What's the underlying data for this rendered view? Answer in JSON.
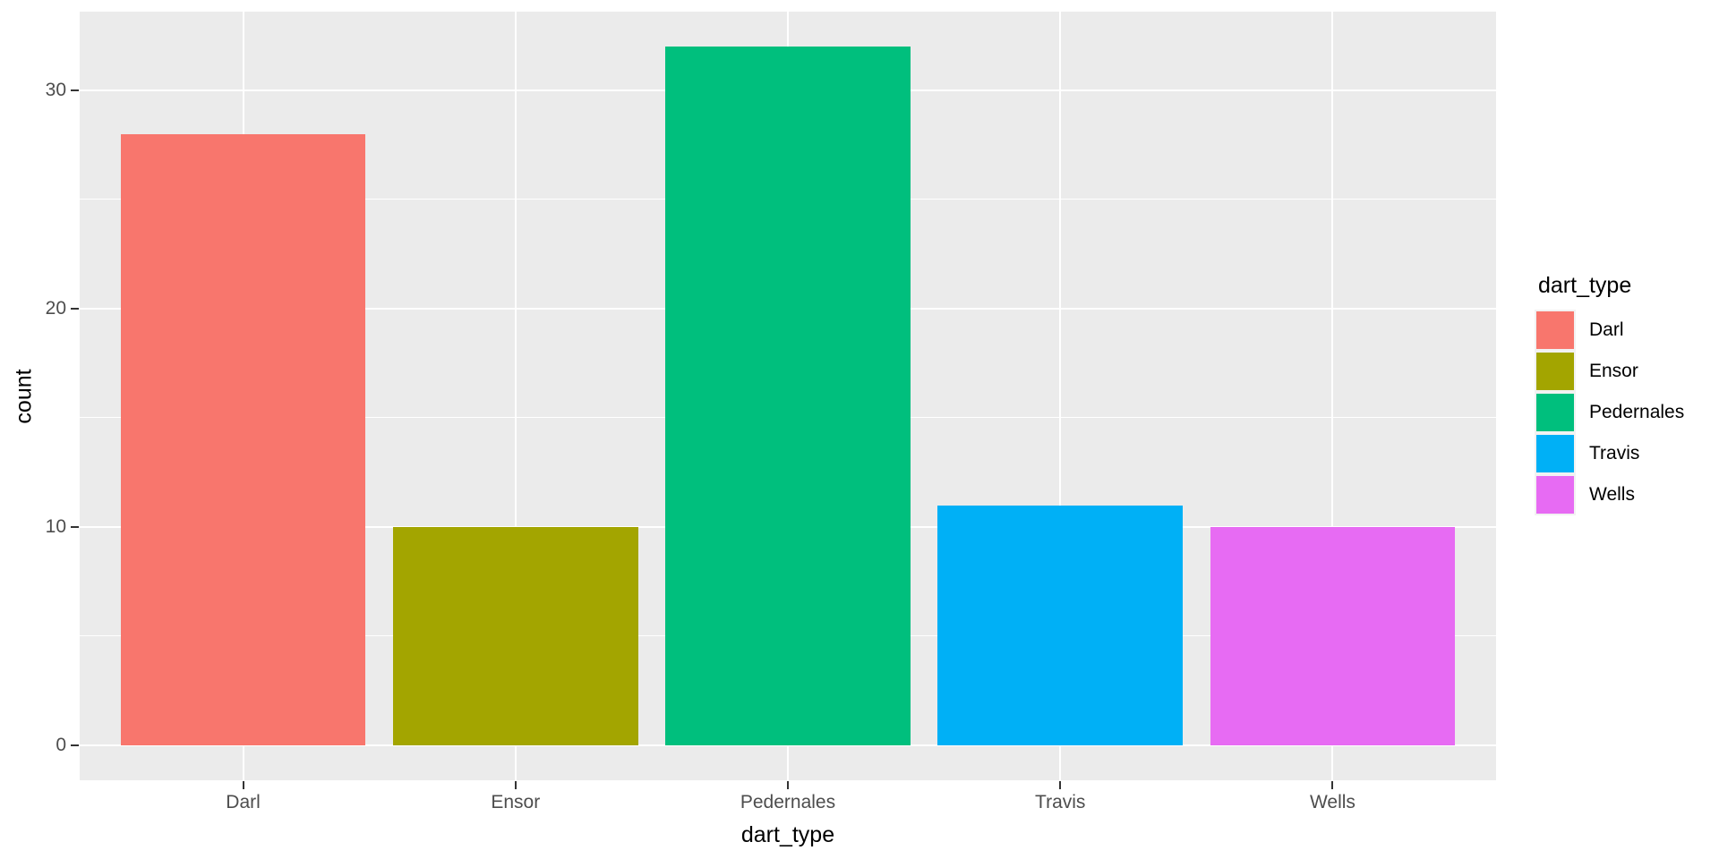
{
  "chart_data": {
    "type": "bar",
    "title": "",
    "xlabel": "dart_type",
    "ylabel": "count",
    "categories": [
      "Darl",
      "Ensor",
      "Pedernales",
      "Travis",
      "Wells"
    ],
    "values": [
      28,
      10,
      32,
      11,
      10
    ],
    "colors": [
      "#F8766D",
      "#A3A500",
      "#00BF7D",
      "#00B0F6",
      "#E76BF3"
    ],
    "y_axis": {
      "ticks": [
        0,
        10,
        20,
        30
      ],
      "minor_ticks": [
        5,
        15,
        25
      ],
      "range": [
        -1.6,
        33.6
      ]
    },
    "x_axis": {
      "tick_labels": [
        "Darl",
        "Ensor",
        "Pedernales",
        "Travis",
        "Wells"
      ]
    },
    "legend": {
      "title": "dart_type",
      "position": "right",
      "entries": [
        {
          "label": "Darl",
          "color": "#F8766D"
        },
        {
          "label": "Ensor",
          "color": "#A3A500"
        },
        {
          "label": "Pedernales",
          "color": "#00BF7D"
        },
        {
          "label": "Travis",
          "color": "#00B0F6"
        },
        {
          "label": "Wells",
          "color": "#E76BF3"
        }
      ]
    },
    "grid": "on",
    "theme": {
      "background": "#FFFFFF",
      "panel_background": "#EBEBEB",
      "gridline_color": "#FFFFFF",
      "tick_label_color": "#4D4D4D",
      "axis_title_color": "#000000",
      "tick_mark_color": "#333333"
    }
  }
}
